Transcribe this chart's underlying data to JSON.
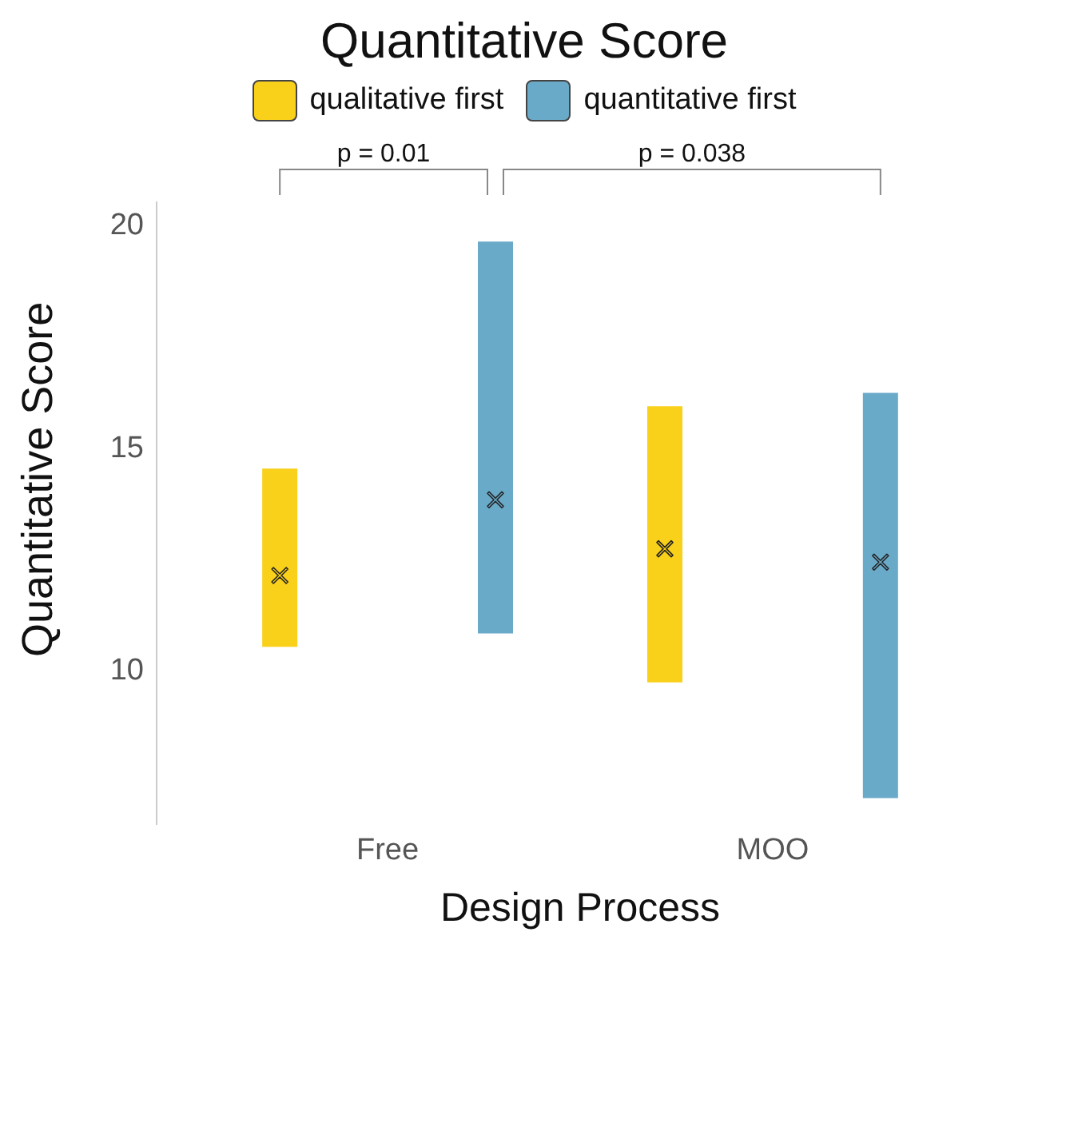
{
  "chart_data": {
    "type": "scatter",
    "title": "Quantitative Score",
    "xlabel": "Design Process",
    "ylabel": "Quantitative Score",
    "categories": [
      "Free",
      "MOO"
    ],
    "series": [
      {
        "name": "qualitative first",
        "color": "#f9d01a",
        "x": [
          "Free",
          "MOO"
        ],
        "values": [
          12.1,
          12.7
        ],
        "errors": [
          [
            10.5,
            14.5
          ],
          [
            9.7,
            15.9
          ]
        ]
      },
      {
        "name": "quantitative first",
        "color": "#6aaac9",
        "x": [
          "Free",
          "MOO"
        ],
        "values": [
          13.8,
          12.4
        ],
        "errors": [
          [
            10.8,
            19.6
          ],
          [
            7.1,
            16.2
          ]
        ]
      }
    ],
    "annotations": [
      "p = 0.01",
      "p = 0.038"
    ],
    "ylim": [
      6.5,
      20.5
    ],
    "yticks": [
      10,
      15,
      20
    ],
    "grid": false,
    "legend": "top",
    "marker": "cross"
  }
}
